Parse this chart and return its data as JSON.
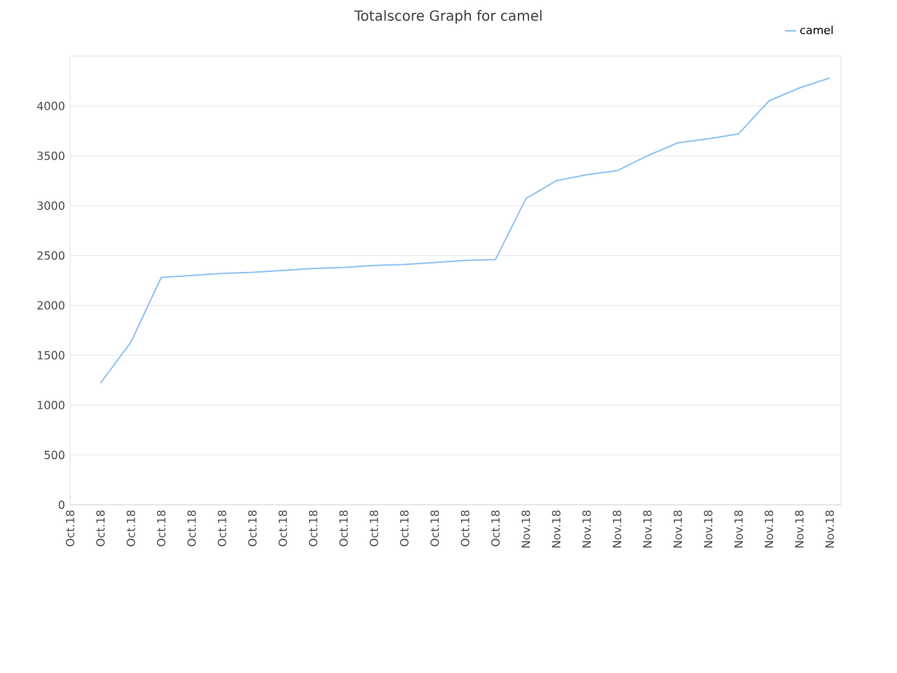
{
  "chart_data": {
    "type": "line",
    "title": "Totalscore Graph for camel",
    "categories": [
      "Oct.18",
      "Oct.18",
      "Oct.18",
      "Oct.18",
      "Oct.18",
      "Oct.18",
      "Oct.18",
      "Oct.18",
      "Oct.18",
      "Oct.18",
      "Oct.18",
      "Oct.18",
      "Oct.18",
      "Oct.18",
      "Oct.18",
      "Nov.18",
      "Nov.18",
      "Nov.18",
      "Nov.18",
      "Nov.18",
      "Nov.18",
      "Nov.18",
      "Nov.18",
      "Nov.18",
      "Nov.18",
      "Nov.18"
    ],
    "series": [
      {
        "name": "camel",
        "color": "#8fc1f2",
        "values": [
          null,
          1220,
          1630,
          2280,
          2300,
          2320,
          2330,
          2350,
          2370,
          2380,
          2400,
          2410,
          2430,
          2450,
          2460,
          3070,
          3250,
          3310,
          3350,
          3500,
          3630,
          3670,
          3720,
          4050,
          4180,
          4280
        ]
      }
    ],
    "ylim": [
      0,
      4500
    ],
    "yticks": [
      0,
      500,
      1000,
      1500,
      2000,
      2500,
      3000,
      3500,
      4000
    ],
    "grid": "y",
    "legend": "top right",
    "marker": "none",
    "line_style": "solid"
  }
}
